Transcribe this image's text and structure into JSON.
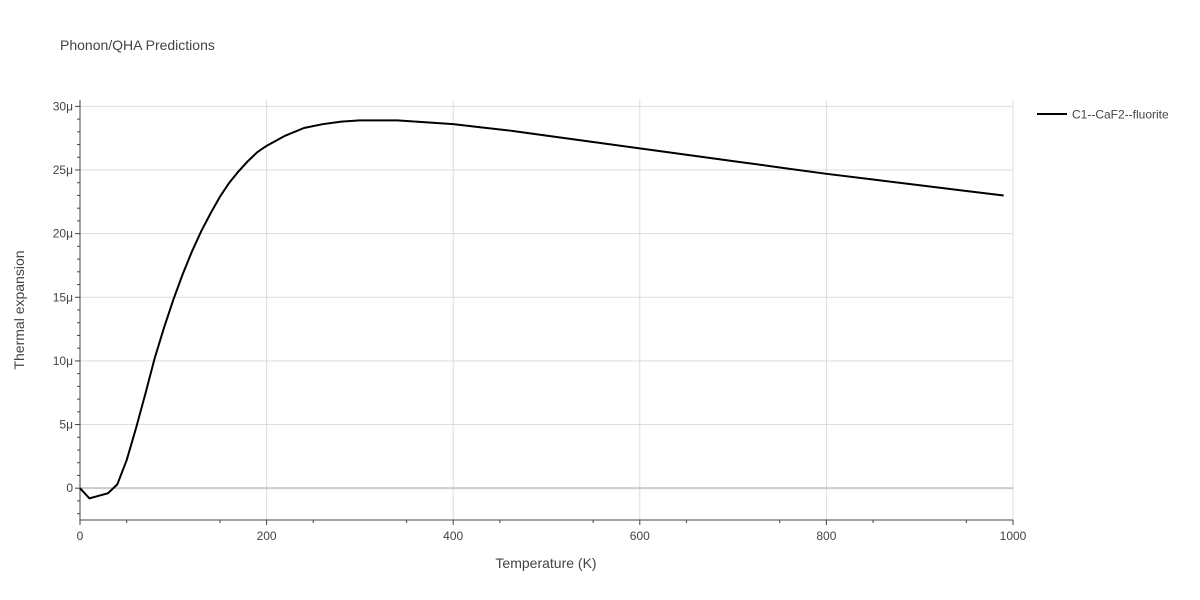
{
  "chart_data": {
    "type": "line",
    "title": "Phonon/QHA Predictions",
    "xlabel": "Temperature (K)",
    "ylabel": "Thermal expansion",
    "xlim": [
      0,
      1000
    ],
    "ylim": [
      -2.5,
      30.5
    ],
    "y_unit": "µ (×1e-6)",
    "grid": true,
    "legend_position": "top-right",
    "x_ticks": [
      {
        "value": 0,
        "label": "0"
      },
      {
        "value": 200,
        "label": "200"
      },
      {
        "value": 400,
        "label": "400"
      },
      {
        "value": 600,
        "label": "600"
      },
      {
        "value": 800,
        "label": "800"
      },
      {
        "value": 1000,
        "label": "1000"
      }
    ],
    "y_ticks": [
      {
        "value": 0,
        "label": "0"
      },
      {
        "value": 5,
        "label": "5μ"
      },
      {
        "value": 10,
        "label": "10μ"
      },
      {
        "value": 15,
        "label": "15μ"
      },
      {
        "value": 20,
        "label": "20μ"
      },
      {
        "value": 25,
        "label": "25μ"
      },
      {
        "value": 30,
        "label": "30μ"
      }
    ],
    "series": [
      {
        "name": "C1--CaF2--fluorite",
        "color": "#000000",
        "x": [
          0,
          10,
          20,
          30,
          40,
          50,
          60,
          70,
          80,
          90,
          100,
          110,
          120,
          130,
          140,
          150,
          160,
          170,
          180,
          190,
          200,
          220,
          240,
          260,
          280,
          300,
          320,
          340,
          360,
          380,
          400,
          430,
          460,
          500,
          550,
          600,
          650,
          700,
          750,
          800,
          850,
          900,
          950,
          990
        ],
        "y": [
          0,
          -0.8,
          -0.6,
          -0.4,
          0.3,
          2.2,
          4.7,
          7.4,
          10.2,
          12.6,
          14.8,
          16.8,
          18.6,
          20.2,
          21.6,
          22.9,
          24.0,
          24.9,
          25.7,
          26.4,
          26.9,
          27.7,
          28.3,
          28.6,
          28.8,
          28.9,
          28.9,
          28.9,
          28.8,
          28.7,
          28.6,
          28.35,
          28.1,
          27.7,
          27.2,
          26.7,
          26.2,
          25.7,
          25.2,
          24.7,
          24.25,
          23.8,
          23.35,
          23.0
        ]
      }
    ]
  }
}
